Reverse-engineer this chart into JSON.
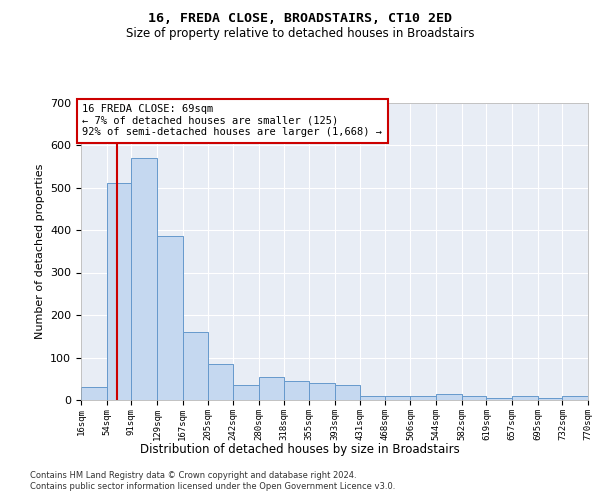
{
  "title": "16, FREDA CLOSE, BROADSTAIRS, CT10 2ED",
  "subtitle": "Size of property relative to detached houses in Broadstairs",
  "xlabel": "Distribution of detached houses by size in Broadstairs",
  "ylabel": "Number of detached properties",
  "bin_edges": [
    16,
    54,
    91,
    129,
    167,
    205,
    242,
    280,
    318,
    355,
    393,
    431,
    468,
    506,
    544,
    582,
    619,
    657,
    695,
    732,
    770
  ],
  "bar_heights": [
    30,
    510,
    570,
    385,
    160,
    85,
    35,
    55,
    45,
    40,
    35,
    10,
    10,
    10,
    15,
    10,
    5,
    10,
    5,
    10
  ],
  "bar_color": "#c5d8f0",
  "bar_edge_color": "#6699cc",
  "property_size": 69,
  "vline_color": "#cc0000",
  "annotation_line1": "16 FREDA CLOSE: 69sqm",
  "annotation_line2": "← 7% of detached houses are smaller (125)",
  "annotation_line3": "92% of semi-detached houses are larger (1,668) →",
  "annotation_box_facecolor": "#ffffff",
  "annotation_border_color": "#cc0000",
  "ylim_max": 700,
  "yticks": [
    0,
    100,
    200,
    300,
    400,
    500,
    600,
    700
  ],
  "bg_color": "#e8edf5",
  "grid_color": "#ffffff",
  "footer_line1": "Contains HM Land Registry data © Crown copyright and database right 2024.",
  "footer_line2": "Contains public sector information licensed under the Open Government Licence v3.0."
}
